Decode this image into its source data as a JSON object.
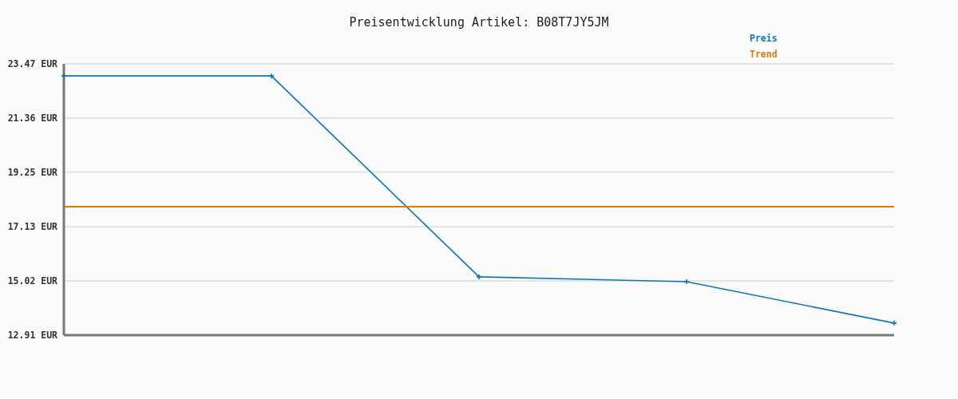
{
  "chart_data": {
    "type": "line",
    "title": "Preisentwicklung Artikel: B08T7JY5JM",
    "categories": [
      null,
      null,
      null,
      null,
      null
    ],
    "series": [
      {
        "name": "Preis",
        "color": "#0a77c5",
        "values": [
          23.0,
          23.0,
          15.18,
          14.99,
          13.38
        ],
        "marker": "cross"
      },
      {
        "name": "Trend",
        "color": "#e07b00",
        "values": [
          17.91,
          17.91,
          17.91,
          17.91,
          17.91
        ],
        "marker": "none"
      }
    ],
    "ylim": [
      12.91,
      23.47
    ],
    "yticks": [
      {
        "value": 12.91,
        "label": "12.91 EUR"
      },
      {
        "value": 15.02,
        "label": "15.02 EUR"
      },
      {
        "value": 17.13,
        "label": "17.13 EUR"
      },
      {
        "value": 19.25,
        "label": "19.25 EUR"
      },
      {
        "value": 21.36,
        "label": "21.36 EUR"
      },
      {
        "value": 23.47,
        "label": "23.47 EUR"
      }
    ],
    "grid": "y",
    "legend": "top right",
    "tick_labels": "y",
    "line_style": "solid"
  }
}
